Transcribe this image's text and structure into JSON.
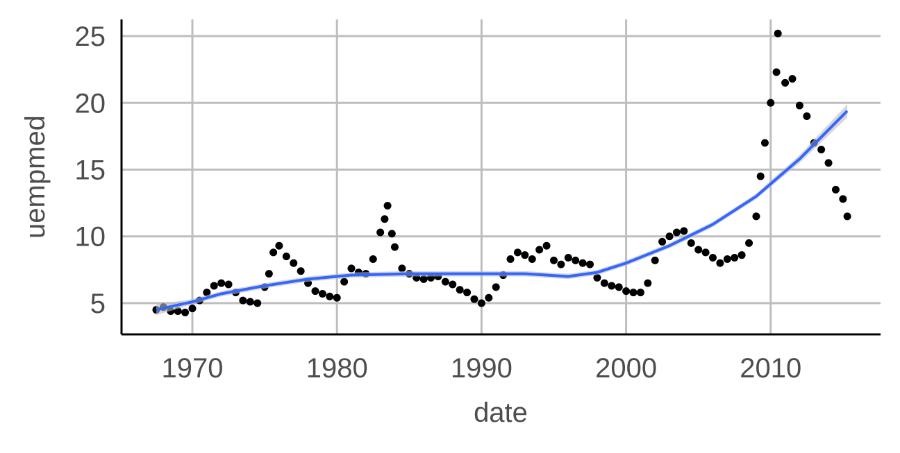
{
  "chart_data": {
    "type": "scatter",
    "x_label": "date",
    "y_label": "uempmed",
    "xlim": [
      1965.1,
      2017.6
    ],
    "ylim": [
      2.66,
      26.25
    ],
    "xticks": [
      1970,
      1980,
      1990,
      2000,
      2010
    ],
    "yticks": [
      5,
      10,
      15,
      20,
      25
    ],
    "grid": true,
    "color": "#000000",
    "x": [
      1967.5,
      1968,
      1968.5,
      1969,
      1969.5,
      1970,
      1970.5,
      1971,
      1971.5,
      1972,
      1972.5,
      1973,
      1973.5,
      1974,
      1974.5,
      1975,
      1975.3,
      1975.6,
      1976,
      1976.5,
      1977,
      1977.5,
      1978,
      1978.5,
      1979,
      1979.5,
      1980,
      1980.5,
      1981,
      1981.5,
      1982,
      1982.5,
      1983,
      1983.3,
      1983.5,
      1983.8,
      1984,
      1984.5,
      1985,
      1985.5,
      1986,
      1986.5,
      1987,
      1987.5,
      1988,
      1988.5,
      1989,
      1989.5,
      1990,
      1990.5,
      1991,
      1991.5,
      1992,
      1992.5,
      1993,
      1993.5,
      1994,
      1994.5,
      1995,
      1995.5,
      1996,
      1996.5,
      1997,
      1997.5,
      1998,
      1998.5,
      1999,
      1999.5,
      2000,
      2000.5,
      2001,
      2001.5,
      2002,
      2002.5,
      2003,
      2003.5,
      2004,
      2004.5,
      2005,
      2005.5,
      2006,
      2006.5,
      2007,
      2007.5,
      2008,
      2008.5,
      2009,
      2009.3,
      2009.6,
      2010,
      2010.4,
      2010.5,
      2011,
      2011.5,
      2012,
      2012.5,
      2013,
      2013.5,
      2014,
      2014.5,
      2015,
      2015.3
    ],
    "values": [
      4.5,
      4.7,
      4.4,
      4.4,
      4.3,
      4.6,
      5.2,
      5.8,
      6.3,
      6.5,
      6.4,
      5.8,
      5.2,
      5.1,
      5.0,
      6.2,
      7.2,
      8.8,
      9.3,
      8.5,
      8.0,
      7.4,
      6.5,
      5.9,
      5.7,
      5.5,
      5.4,
      6.6,
      7.6,
      7.3,
      7.2,
      8.3,
      10.3,
      11.3,
      12.3,
      10.2,
      9.2,
      7.6,
      7.2,
      6.9,
      6.8,
      6.9,
      7.0,
      6.6,
      6.4,
      6.0,
      5.8,
      5.3,
      5.0,
      5.4,
      6.2,
      7.1,
      8.3,
      8.8,
      8.6,
      8.3,
      9.0,
      9.3,
      8.2,
      7.9,
      8.4,
      8.2,
      8.0,
      7.9,
      6.9,
      6.5,
      6.3,
      6.2,
      5.9,
      5.8,
      5.8,
      6.5,
      8.2,
      9.6,
      10.0,
      10.3,
      10.4,
      9.5,
      9.0,
      8.8,
      8.4,
      8.0,
      8.3,
      8.4,
      8.6,
      9.5,
      11.5,
      14.5,
      17.0,
      20.0,
      22.3,
      25.2,
      21.5,
      21.8,
      19.8,
      19.0,
      17.0,
      16.5,
      15.5,
      13.5,
      12.8,
      11.5
    ],
    "smooth": {
      "color": "#3366ff",
      "band_color": "#bdbdbd",
      "x": [
        1967.5,
        1970,
        1972,
        1975,
        1978,
        1981,
        1985,
        1990,
        1993,
        1996,
        1998,
        2000,
        2003,
        2006,
        2009,
        2012,
        2015.3
      ],
      "values": [
        4.5,
        5.1,
        5.7,
        6.3,
        6.8,
        7.1,
        7.2,
        7.2,
        7.2,
        7.0,
        7.3,
        8.0,
        9.3,
        10.9,
        13.0,
        15.8,
        19.4
      ],
      "lower": [
        4.1,
        4.9,
        5.5,
        6.1,
        6.6,
        6.9,
        7.0,
        7.0,
        7.0,
        6.8,
        7.1,
        7.8,
        9.1,
        10.7,
        12.8,
        15.5,
        18.9
      ],
      "upper": [
        4.9,
        5.3,
        5.9,
        6.5,
        7.0,
        7.3,
        7.4,
        7.4,
        7.4,
        7.2,
        7.5,
        8.2,
        9.5,
        11.1,
        13.2,
        16.1,
        19.9
      ]
    }
  }
}
